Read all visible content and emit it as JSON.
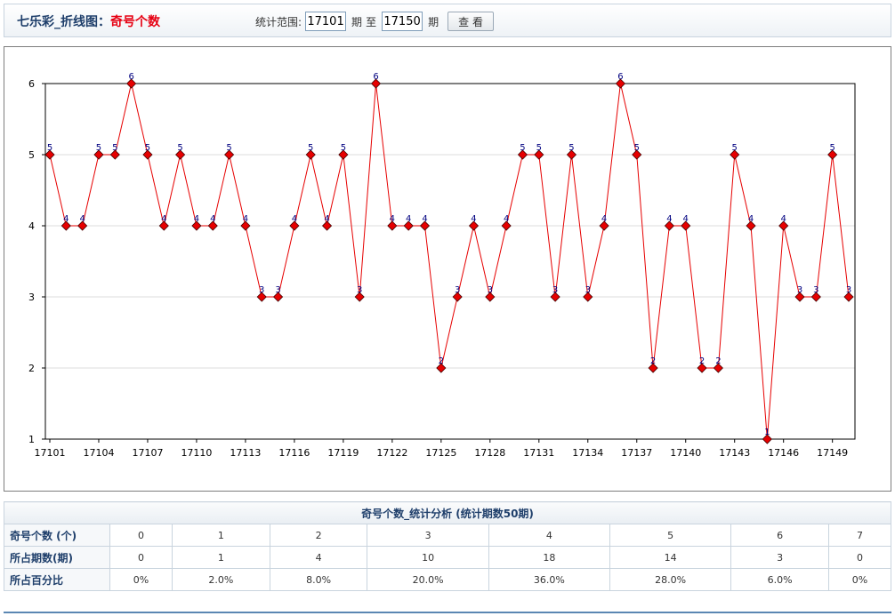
{
  "header": {
    "title_prefix": "七乐彩_折线图：",
    "title_highlight": "奇号个数",
    "range_label": "统计范围:",
    "from_value": "17101",
    "period_label": "期",
    "to_label": "至",
    "to_value": "17150",
    "period_label2": "期",
    "view_button": "查 看"
  },
  "chart_data": {
    "type": "line",
    "title": "",
    "xlabel": "",
    "ylabel": "",
    "ylim": [
      1,
      6
    ],
    "yticks": [
      1,
      2,
      3,
      4,
      5,
      6
    ],
    "x": [
      17101,
      17102,
      17103,
      17104,
      17105,
      17106,
      17107,
      17108,
      17109,
      17110,
      17111,
      17112,
      17113,
      17114,
      17115,
      17116,
      17117,
      17118,
      17119,
      17120,
      17121,
      17122,
      17123,
      17124,
      17125,
      17126,
      17127,
      17128,
      17129,
      17130,
      17131,
      17132,
      17133,
      17134,
      17135,
      17136,
      17137,
      17138,
      17139,
      17140,
      17141,
      17142,
      17143,
      17144,
      17145,
      17146,
      17147,
      17148,
      17149,
      17150
    ],
    "xtick_labels": [
      "17101",
      "17104",
      "17107",
      "17110",
      "17113",
      "17116",
      "17119",
      "17122",
      "17125",
      "17128",
      "17131",
      "17134",
      "17137",
      "17140",
      "17143",
      "17146",
      "17149"
    ],
    "values": [
      5,
      4,
      4,
      5,
      5,
      6,
      5,
      4,
      5,
      4,
      4,
      5,
      4,
      3,
      3,
      4,
      5,
      4,
      5,
      3,
      6,
      4,
      4,
      4,
      2,
      3,
      4,
      3,
      4,
      5,
      5,
      3,
      5,
      3,
      4,
      6,
      5,
      2,
      4,
      4,
      2,
      2,
      5,
      4,
      1,
      4,
      3,
      3,
      5,
      3
    ],
    "line_color": "#e60000",
    "marker_color": "#e60000",
    "grid": true
  },
  "stats": {
    "caption": "奇号个数_统计分析 (统计期数50期)",
    "rows": [
      {
        "label": "奇号个数 (个)",
        "cells": [
          "0",
          "1",
          "2",
          "3",
          "4",
          "5",
          "6",
          "7"
        ]
      },
      {
        "label": "所占期数(期)",
        "cells": [
          "0",
          "1",
          "4",
          "10",
          "18",
          "14",
          "3",
          "0"
        ]
      },
      {
        "label": "所占百分比",
        "cells": [
          "0%",
          "2.0%",
          "8.0%",
          "20.0%",
          "36.0%",
          "28.0%",
          "6.0%",
          "0%"
        ]
      }
    ]
  }
}
